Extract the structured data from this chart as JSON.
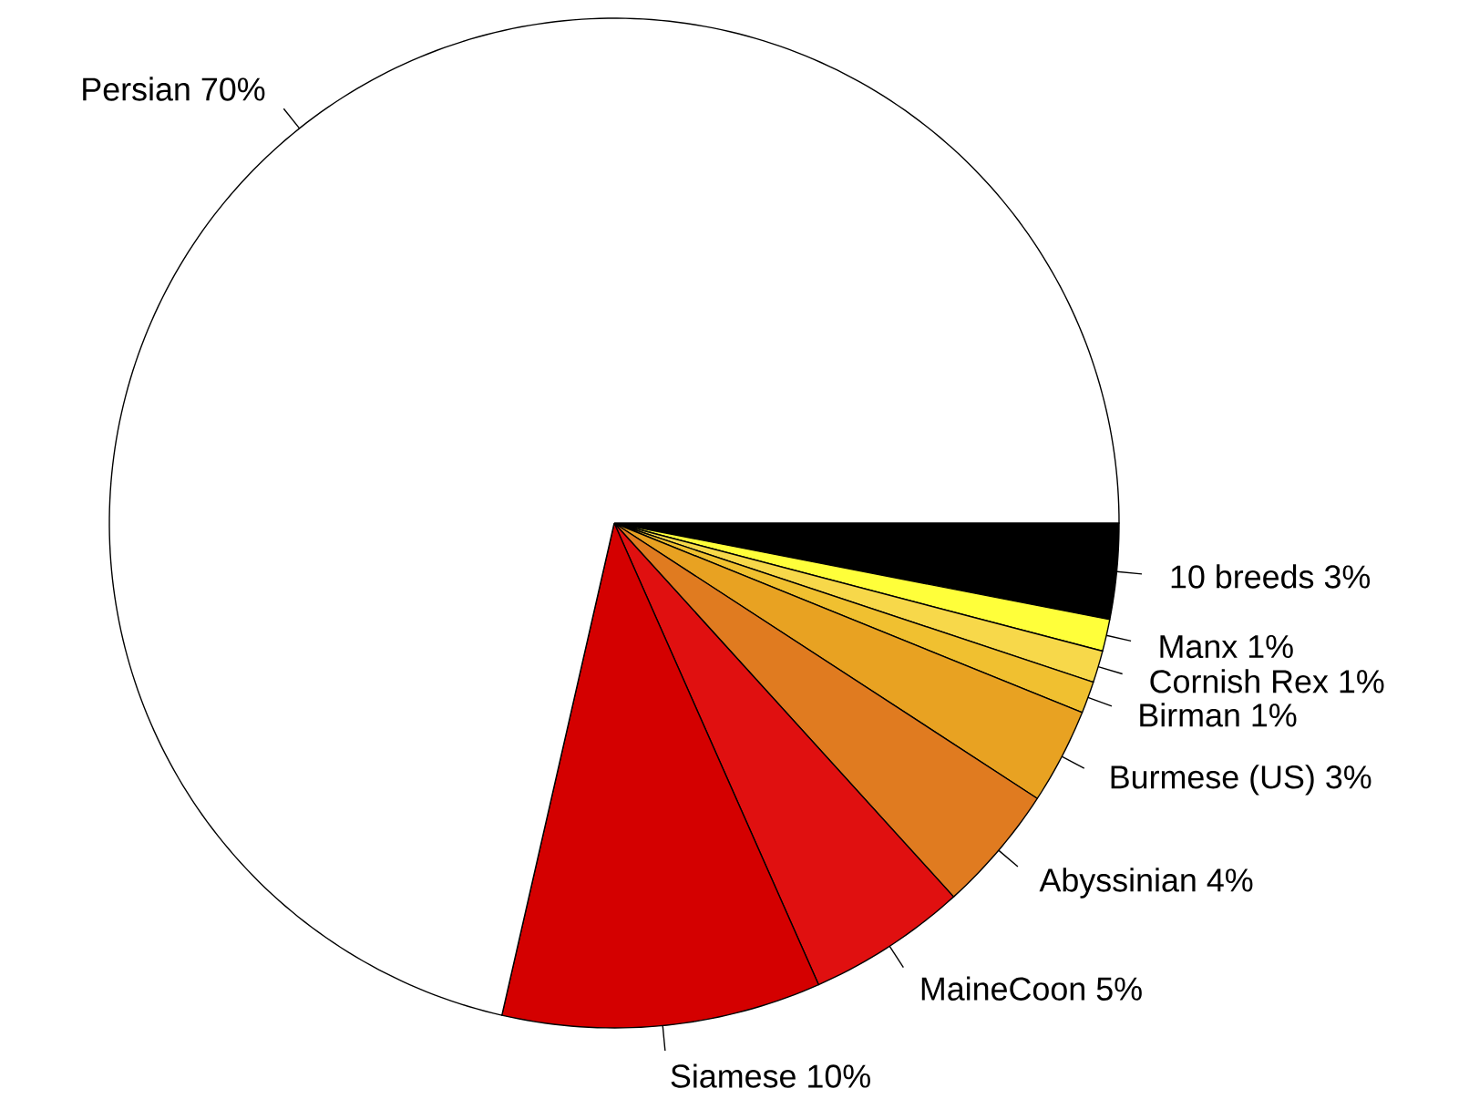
{
  "chart_data": {
    "type": "pie",
    "categories": [
      "10 breeds",
      "Manx",
      "Cornish Rex",
      "Birman",
      "Burmese (US)",
      "Abyssinian",
      "MaineCoon",
      "Siamese",
      "Persian"
    ],
    "values": [
      3,
      1,
      1,
      1,
      3,
      4,
      5,
      10,
      70
    ],
    "value_labels": [
      "3%",
      "1%",
      "1%",
      "1%",
      "3%",
      "4%",
      "5%",
      "10%",
      "70%"
    ],
    "colors": [
      "#000000",
      "#ffff3a",
      "#f7d84a",
      "#f0c030",
      "#e8a222",
      "#e07b20",
      "#e01010",
      "#d40000",
      "#ffffff"
    ]
  }
}
